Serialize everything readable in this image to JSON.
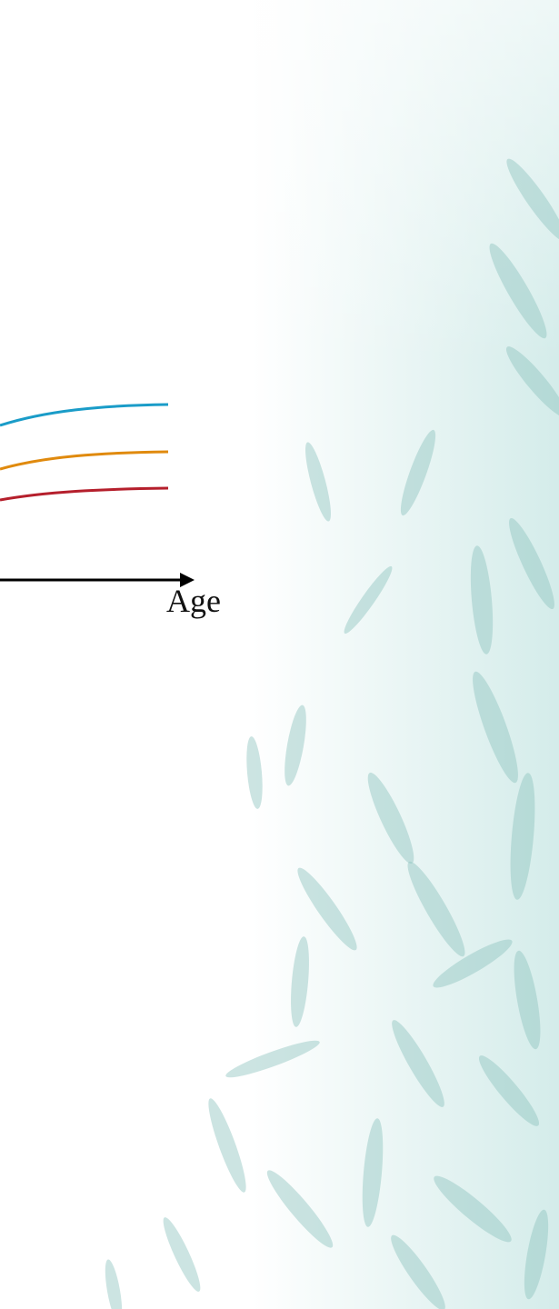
{
  "x_axis_label": "Age"
}
